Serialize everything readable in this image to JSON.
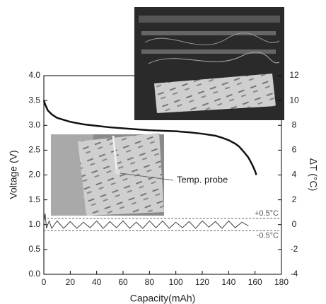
{
  "chart_data": {
    "type": "line",
    "x_label": "Capacity(mAh)",
    "y_label": "Voltage (V)",
    "y2_label": "ΔT (°C)",
    "annotation": "Temp. probe",
    "xlim": [
      0,
      180
    ],
    "xticks": [
      0,
      20,
      40,
      60,
      80,
      100,
      120,
      140,
      160,
      180
    ],
    "ylim": [
      0,
      4
    ],
    "yticks": [
      {
        "value": 0,
        "label": "0.0"
      },
      {
        "value": 0.5,
        "label": "0.5"
      },
      {
        "value": 1,
        "label": "1.0"
      },
      {
        "value": 1.5,
        "label": "1.5"
      },
      {
        "value": 2,
        "label": "2.0"
      },
      {
        "value": 2.5,
        "label": "2.5"
      },
      {
        "value": 3,
        "label": "3.0"
      },
      {
        "value": 3.5,
        "label": "3.5"
      },
      {
        "value": 4,
        "label": "4.0"
      }
    ],
    "y2lim": [
      -4,
      12
    ],
    "y2ticks": [
      -4,
      -2,
      0,
      2,
      4,
      6,
      8,
      10,
      12
    ],
    "reference_lines": [
      {
        "value": 0.5,
        "label": "+0.5°C"
      },
      {
        "value": -0.5,
        "label": "-0.5°C"
      }
    ],
    "series": [
      {
        "color": "#111111",
        "x": [
          0,
          1,
          3,
          6,
          10,
          20,
          30,
          40,
          50,
          60,
          70,
          80,
          90,
          100,
          110,
          120,
          130,
          135,
          140,
          145,
          148,
          152,
          155,
          158,
          160,
          161
        ],
        "values": [
          3.5,
          3.42,
          3.3,
          3.22,
          3.15,
          3.07,
          3.02,
          2.99,
          2.96,
          2.94,
          2.92,
          2.9,
          2.89,
          2.88,
          2.86,
          2.83,
          2.79,
          2.75,
          2.7,
          2.63,
          2.57,
          2.45,
          2.35,
          2.2,
          2.08,
          2.0
        ]
      },
      {
        "color": "#444444",
        "axis": "y2",
        "x": [
          0,
          1,
          2,
          4,
          6,
          10,
          15,
          20,
          25,
          30,
          35,
          40,
          45,
          50,
          55,
          60,
          65,
          70,
          75,
          80,
          85,
          90,
          95,
          100,
          105,
          110,
          115,
          120,
          125,
          130,
          135,
          140,
          145,
          150,
          155
        ],
        "values": [
          0.2,
          0.9,
          -0.3,
          0.3,
          -0.3,
          0.3,
          -0.3,
          0.25,
          -0.3,
          0.2,
          -0.25,
          0.3,
          -0.3,
          0.25,
          -0.25,
          0.3,
          -0.3,
          0.2,
          -0.3,
          0.3,
          -0.25,
          0.3,
          -0.3,
          0.2,
          -0.25,
          0.25,
          -0.3,
          0.3,
          -0.2,
          0.25,
          -0.3,
          0.3,
          -0.25,
          0.2,
          -0.1
        ]
      }
    ]
  }
}
